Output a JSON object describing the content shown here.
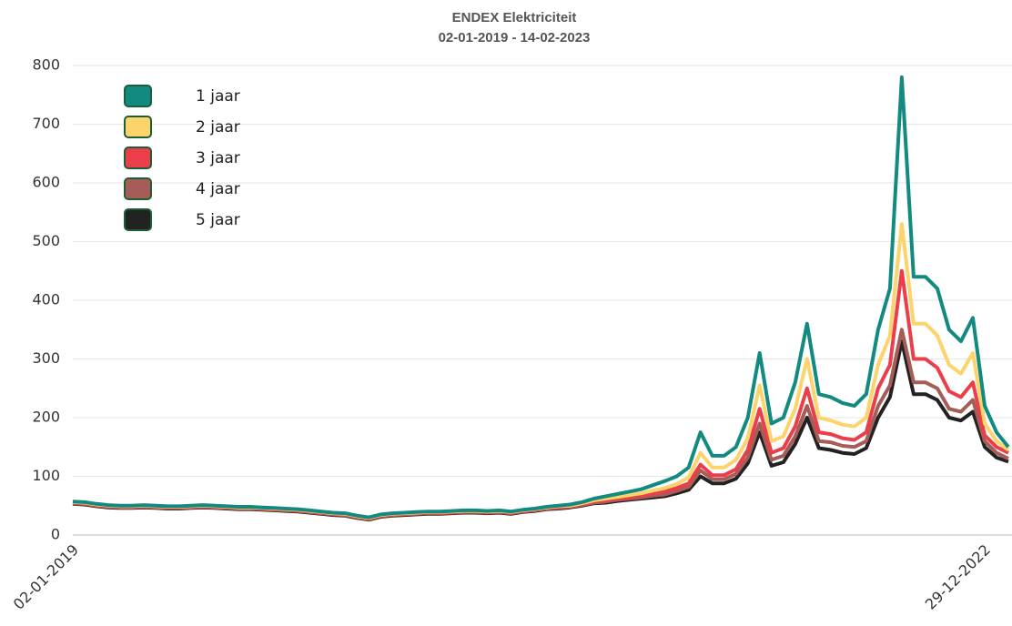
{
  "chart_data": {
    "type": "line",
    "title": "ENDEX Elektriciteit",
    "subtitle": "02-01-2019 - 14-02-2023",
    "categories": [
      "02-01-2019",
      null,
      null,
      null,
      null,
      null,
      null,
      null,
      null,
      null,
      null,
      null,
      null,
      null,
      null,
      null,
      null,
      null,
      null,
      null,
      null,
      null,
      null,
      null,
      null,
      null,
      null,
      null,
      null,
      null,
      null,
      null,
      null,
      null,
      null,
      null,
      null,
      null,
      null,
      null,
      null,
      null,
      null,
      null,
      null,
      null,
      null,
      null,
      null,
      null,
      null,
      null,
      null,
      null,
      null,
      null,
      null,
      null,
      null,
      null,
      null,
      null,
      null,
      null,
      null,
      null,
      null,
      null,
      null,
      null,
      null,
      null,
      null,
      null,
      null,
      null,
      null,
      "29-12-2022",
      null,
      null
    ],
    "series": [
      {
        "name": "1 jaar",
        "color": "#138a80",
        "values": [
          57,
          56,
          53,
          51,
          50,
          50,
          51,
          50,
          49,
          49,
          50,
          51,
          50,
          49,
          48,
          48,
          47,
          46,
          45,
          44,
          42,
          40,
          38,
          37,
          33,
          30,
          35,
          37,
          38,
          39,
          40,
          40,
          41,
          42,
          42,
          41,
          42,
          40,
          43,
          45,
          48,
          50,
          52,
          56,
          62,
          66,
          70,
          74,
          78,
          85,
          92,
          100,
          115,
          175,
          135,
          135,
          150,
          200,
          310,
          190,
          200,
          260,
          360,
          240,
          235,
          225,
          220,
          240,
          350,
          420,
          780,
          440,
          440,
          420,
          350,
          330,
          370,
          220,
          175,
          150
        ]
      },
      {
        "name": "2 jaar",
        "color": "#fcd46b",
        "values": [
          56,
          55,
          52,
          50,
          49,
          49,
          50,
          49,
          48,
          48,
          49,
          50,
          49,
          48,
          47,
          47,
          46,
          45,
          44,
          43,
          41,
          39,
          37,
          36,
          32,
          29,
          34,
          36,
          37,
          38,
          39,
          39,
          40,
          41,
          41,
          40,
          41,
          39,
          42,
          44,
          47,
          49,
          50,
          54,
          59,
          62,
          65,
          68,
          71,
          76,
          80,
          87,
          98,
          140,
          115,
          115,
          128,
          165,
          255,
          160,
          168,
          215,
          300,
          200,
          195,
          188,
          185,
          200,
          290,
          340,
          530,
          360,
          360,
          340,
          290,
          275,
          310,
          190,
          160,
          145
        ]
      },
      {
        "name": "3 jaar",
        "color": "#ea3f4a",
        "values": [
          55,
          54,
          51,
          49,
          48,
          48,
          49,
          48,
          47,
          47,
          48,
          49,
          48,
          47,
          46,
          46,
          45,
          44,
          43,
          42,
          40,
          38,
          36,
          35,
          31,
          28,
          33,
          35,
          36,
          37,
          38,
          38,
          39,
          40,
          40,
          39,
          40,
          38,
          41,
          43,
          46,
          47,
          49,
          52,
          57,
          59,
          62,
          64,
          67,
          71,
          74,
          80,
          88,
          120,
          102,
          102,
          112,
          145,
          215,
          140,
          148,
          185,
          250,
          175,
          172,
          165,
          162,
          175,
          250,
          290,
          450,
          300,
          300,
          285,
          245,
          235,
          260,
          170,
          150,
          140
        ]
      },
      {
        "name": "4 jaar",
        "color": "#a65d57",
        "values": [
          54,
          53,
          50,
          48,
          47,
          47,
          48,
          47,
          46,
          46,
          47,
          48,
          47,
          46,
          45,
          45,
          44,
          43,
          42,
          41,
          39,
          37,
          35,
          34,
          30,
          27,
          32,
          34,
          35,
          36,
          37,
          37,
          38,
          39,
          39,
          38,
          39,
          37,
          40,
          42,
          45,
          46,
          48,
          51,
          55,
          57,
          60,
          62,
          64,
          67,
          69,
          75,
          82,
          110,
          95,
          95,
          104,
          132,
          190,
          128,
          135,
          168,
          220,
          160,
          158,
          152,
          150,
          160,
          220,
          255,
          350,
          260,
          260,
          250,
          215,
          210,
          230,
          160,
          140,
          130
        ]
      },
      {
        "name": "5 jaar",
        "color": "#222222",
        "values": [
          53,
          52,
          49,
          47,
          46,
          46,
          47,
          46,
          45,
          45,
          46,
          47,
          46,
          45,
          44,
          44,
          43,
          42,
          41,
          40,
          38,
          36,
          34,
          33,
          29,
          26,
          31,
          33,
          34,
          35,
          36,
          36,
          37,
          38,
          38,
          37,
          38,
          36,
          39,
          41,
          44,
          45,
          47,
          50,
          54,
          55,
          58,
          60,
          62,
          64,
          66,
          71,
          77,
          100,
          88,
          88,
          96,
          122,
          175,
          118,
          124,
          155,
          200,
          148,
          145,
          140,
          138,
          148,
          200,
          235,
          330,
          240,
          240,
          230,
          200,
          195,
          210,
          150,
          132,
          125
        ]
      }
    ],
    "ylim": [
      0,
      800
    ],
    "yticks": [
      0,
      100,
      200,
      300,
      400,
      500,
      600,
      700,
      800
    ],
    "grid": true,
    "legend": "upper left"
  }
}
